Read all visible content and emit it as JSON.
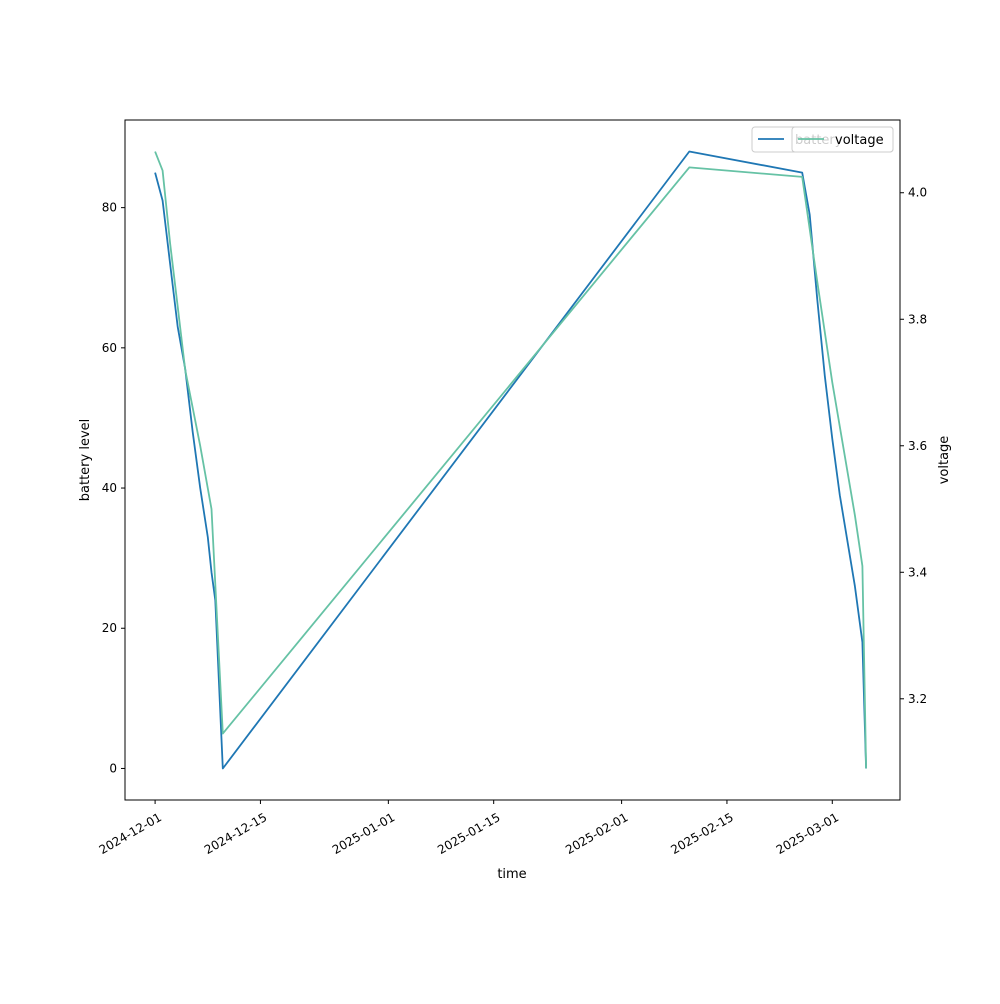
{
  "chart_data": {
    "type": "line",
    "xlabel": "time",
    "ylabel_left": "battery level",
    "ylabel_right": "voltage",
    "xlim": [
      "2024-11-27",
      "2025-03-10"
    ],
    "x_ticks": [
      "2024-12-01",
      "2024-12-15",
      "2025-01-01",
      "2025-01-15",
      "2025-02-01",
      "2025-02-15",
      "2025-03-01"
    ],
    "ylim_left": [
      -4.5,
      92.5
    ],
    "y_ticks_left": [
      0,
      20,
      40,
      60,
      80
    ],
    "ylim_right": [
      3.04,
      4.115
    ],
    "y_ticks_right": [
      3.2,
      3.4,
      3.6,
      3.8,
      4.0
    ],
    "legend_placement": "top-right",
    "grid": false,
    "series": [
      {
        "name": "battery",
        "axis": "left",
        "color": "#1f77b4",
        "points": [
          [
            "2024-12-01",
            85
          ],
          [
            "2024-12-02",
            81
          ],
          [
            "2024-12-03",
            72
          ],
          [
            "2024-12-04",
            63
          ],
          [
            "2024-12-05",
            57
          ],
          [
            "2024-12-06",
            48
          ],
          [
            "2024-12-07",
            40
          ],
          [
            "2024-12-08",
            33
          ],
          [
            "2024-12-08 12:00",
            28
          ],
          [
            "2024-12-09",
            24
          ],
          [
            "2024-12-10",
            0
          ],
          [
            "2025-02-10",
            88
          ],
          [
            "2025-02-25",
            85
          ],
          [
            "2025-02-26",
            79
          ],
          [
            "2025-02-27",
            67
          ],
          [
            "2025-02-28",
            56
          ],
          [
            "2025-03-01",
            47
          ],
          [
            "2025-03-02",
            39
          ],
          [
            "2025-03-04",
            26
          ],
          [
            "2025-03-05",
            18
          ],
          [
            "2025-03-05 12:00",
            0
          ]
        ]
      },
      {
        "name": "voltage",
        "axis": "right",
        "color": "#66c2a5",
        "points": [
          [
            "2024-12-01",
            4.065
          ],
          [
            "2024-12-02",
            4.035
          ],
          [
            "2024-12-03",
            3.92
          ],
          [
            "2024-12-04",
            3.82
          ],
          [
            "2024-12-05",
            3.72
          ],
          [
            "2024-12-06",
            3.66
          ],
          [
            "2024-12-07",
            3.6
          ],
          [
            "2024-12-08 12:00",
            3.5
          ],
          [
            "2024-12-10",
            3.145
          ],
          [
            "2025-02-10",
            4.04
          ],
          [
            "2025-02-25",
            4.025
          ],
          [
            "2025-02-27",
            3.86
          ],
          [
            "2025-03-01",
            3.7
          ],
          [
            "2025-03-04",
            3.49
          ],
          [
            "2025-03-05",
            3.41
          ],
          [
            "2025-03-05 12:00",
            3.09
          ]
        ]
      }
    ],
    "legends": [
      {
        "label": "battery",
        "color": "#1f77b4"
      },
      {
        "label": "voltage",
        "color": "#66c2a5"
      }
    ]
  }
}
